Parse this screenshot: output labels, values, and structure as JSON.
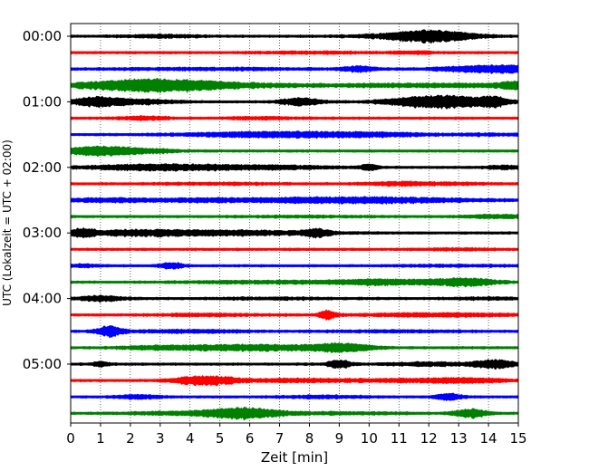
{
  "chart_data": {
    "type": "line",
    "title": "",
    "xlabel": "Zeit  [min]",
    "ylabel": "UTC (Lokalzeit = UTC + 02:00)",
    "xlim": [
      0,
      15
    ],
    "x_ticks": [
      "0",
      "1",
      "2",
      "3",
      "4",
      "5",
      "6",
      "7",
      "8",
      "9",
      "10",
      "11",
      "12",
      "13",
      "14",
      "15"
    ],
    "y_tick_labels": [
      "00:00",
      "01:00",
      "02:00",
      "03:00",
      "04:00",
      "05:00"
    ],
    "grid": "vertical dotted lines at each minute",
    "trace_interval_minutes": 15,
    "start": "00:00",
    "end": "05:45",
    "colors": {
      "black": "#000000",
      "red": "#ff0000",
      "blue": "#0000ff",
      "green": "#008000"
    },
    "series": [
      {
        "start": "00:00",
        "color": "black",
        "bursts": [
          [
            12.2,
            1.0,
            0.6
          ],
          [
            11.0,
            1.2,
            0.2
          ],
          [
            3.0,
            1.0,
            0.15
          ]
        ]
      },
      {
        "start": "00:15",
        "color": "red",
        "bursts": [
          [
            11.5,
            0.5,
            0.15
          ],
          [
            8.0,
            1.5,
            0.1
          ]
        ]
      },
      {
        "start": "00:30",
        "color": "blue",
        "bursts": [
          [
            14.4,
            1.4,
            0.45
          ],
          [
            9.7,
            0.4,
            0.3
          ],
          [
            5.0,
            3.0,
            0.1
          ]
        ]
      },
      {
        "start": "00:45",
        "color": "green",
        "bursts": [
          [
            2.5,
            1.7,
            0.55
          ],
          [
            4.0,
            2.0,
            0.3
          ],
          [
            12.5,
            3.5,
            0.2
          ],
          [
            14.8,
            0.3,
            0.35
          ]
        ]
      },
      {
        "start": "01:00",
        "color": "black",
        "bursts": [
          [
            12.4,
            1.2,
            0.8
          ],
          [
            0.9,
            0.6,
            0.6
          ],
          [
            7.7,
            0.5,
            0.45
          ],
          [
            14.2,
            0.3,
            0.5
          ],
          [
            2.5,
            0.8,
            0.25
          ]
        ]
      },
      {
        "start": "01:15",
        "color": "red",
        "bursts": [
          [
            2.5,
            0.6,
            0.2
          ],
          [
            6.5,
            1.0,
            0.12
          ]
        ]
      },
      {
        "start": "01:30",
        "color": "blue",
        "bursts": [
          [
            6.5,
            2.0,
            0.3
          ],
          [
            10.0,
            1.5,
            0.2
          ],
          [
            14.0,
            1.0,
            0.1
          ]
        ]
      },
      {
        "start": "01:45",
        "color": "green",
        "bursts": [
          [
            0.8,
            0.8,
            0.45
          ],
          [
            2.2,
            1.0,
            0.25
          ]
        ]
      },
      {
        "start": "02:00",
        "color": "black",
        "bursts": [
          [
            3.0,
            1.8,
            0.35
          ],
          [
            6.8,
            1.5,
            0.2
          ],
          [
            10.0,
            0.2,
            0.4
          ],
          [
            14.5,
            0.5,
            0.2
          ]
        ]
      },
      {
        "start": "02:15",
        "color": "red",
        "bursts": [
          [
            11.0,
            0.8,
            0.2
          ],
          [
            5.0,
            1.5,
            0.1
          ],
          [
            13.0,
            1.0,
            0.1
          ]
        ]
      },
      {
        "start": "02:30",
        "color": "blue",
        "bursts": [
          [
            9.5,
            2.8,
            0.35
          ],
          [
            1.0,
            1.0,
            0.2
          ],
          [
            4.0,
            1.5,
            0.15
          ]
        ]
      },
      {
        "start": "02:45",
        "color": "green",
        "bursts": [
          [
            14.3,
            0.8,
            0.2
          ],
          [
            8.0,
            1.5,
            0.08
          ]
        ]
      },
      {
        "start": "03:00",
        "color": "black",
        "bursts": [
          [
            0.4,
            0.3,
            0.5
          ],
          [
            5.0,
            2.5,
            0.3
          ],
          [
            8.2,
            0.3,
            0.45
          ],
          [
            2.0,
            1.0,
            0.2
          ]
        ]
      },
      {
        "start": "03:15",
        "color": "red",
        "bursts": [
          [
            13.0,
            1.0,
            0.1
          ]
        ]
      },
      {
        "start": "03:30",
        "color": "blue",
        "bursts": [
          [
            3.4,
            0.3,
            0.35
          ],
          [
            0.5,
            0.5,
            0.15
          ],
          [
            13.0,
            1.5,
            0.1
          ]
        ]
      },
      {
        "start": "03:45",
        "color": "green",
        "bursts": [
          [
            13.2,
            0.8,
            0.45
          ],
          [
            10.5,
            1.2,
            0.3
          ],
          [
            6.5,
            2.0,
            0.15
          ]
        ]
      },
      {
        "start": "04:00",
        "color": "black",
        "bursts": [
          [
            1.0,
            0.6,
            0.3
          ],
          [
            7.0,
            1.5,
            0.1
          ],
          [
            14.0,
            1.0,
            0.1
          ]
        ]
      },
      {
        "start": "04:15",
        "color": "red",
        "bursts": [
          [
            8.6,
            0.2,
            0.55
          ],
          [
            12.5,
            2.0,
            0.2
          ],
          [
            4.5,
            1.5,
            0.12
          ]
        ]
      },
      {
        "start": "04:30",
        "color": "blue",
        "bursts": [
          [
            1.3,
            0.3,
            0.65
          ],
          [
            4.0,
            1.5,
            0.15
          ],
          [
            11.0,
            2.0,
            0.1
          ]
        ]
      },
      {
        "start": "04:45",
        "color": "green",
        "bursts": [
          [
            9.0,
            0.8,
            0.5
          ],
          [
            6.0,
            1.5,
            0.35
          ],
          [
            3.0,
            1.0,
            0.2
          ]
        ]
      },
      {
        "start": "05:00",
        "color": "black",
        "bursts": [
          [
            14.2,
            0.5,
            0.5
          ],
          [
            9.0,
            0.3,
            0.45
          ],
          [
            1.0,
            0.2,
            0.3
          ],
          [
            12.0,
            1.0,
            0.2
          ]
        ]
      },
      {
        "start": "05:15",
        "color": "red",
        "bursts": [
          [
            4.5,
            0.8,
            0.55
          ],
          [
            13.0,
            1.2,
            0.3
          ],
          [
            7.5,
            1.0,
            0.2
          ],
          [
            10.0,
            1.0,
            0.15
          ]
        ]
      },
      {
        "start": "05:30",
        "color": "blue",
        "bursts": [
          [
            12.7,
            0.3,
            0.45
          ],
          [
            8.5,
            1.0,
            0.15
          ],
          [
            2.3,
            0.5,
            0.25
          ]
        ]
      },
      {
        "start": "05:45",
        "color": "green",
        "bursts": [
          [
            5.8,
            0.8,
            0.55
          ],
          [
            13.4,
            0.4,
            0.5
          ],
          [
            4.0,
            1.5,
            0.2
          ],
          [
            8.5,
            2.0,
            0.12
          ]
        ]
      }
    ]
  }
}
